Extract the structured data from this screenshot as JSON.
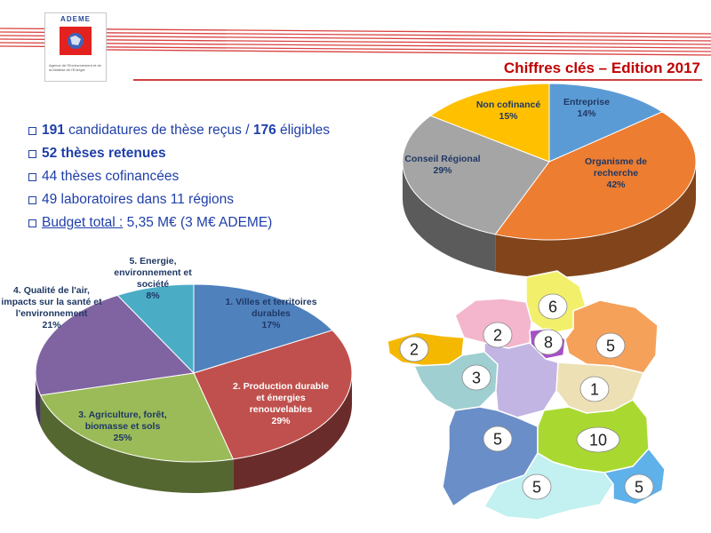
{
  "logo": {
    "brand": "ADEME",
    "tagline": "Agence de l'Environnement et de la Maîtrise de l'Energie"
  },
  "title": "Chiffres clés – Edition 2017",
  "bullets": [
    {
      "n1": "191",
      "t1": " candidatures de thèse reçus / ",
      "n2": "176",
      "t2": " éligibles"
    },
    {
      "text": "52 thèses retenues"
    },
    {
      "text": "44 thèses cofinancées"
    },
    {
      "text": "49 laboratoires dans 11 régions"
    },
    {
      "label": "Budget total :",
      "text": " 5,35 M€ (3 M€ ADEME)"
    }
  ],
  "colors": {
    "accent_red": "#c00000",
    "text_blue": "#1f3fa8"
  },
  "chart_data": [
    {
      "type": "pie",
      "title": "",
      "slices": [
        {
          "label": "Entreprise",
          "value": 14,
          "pct": "14%",
          "color": "#5b9bd5"
        },
        {
          "label": "Organisme de recherche",
          "value": 42,
          "pct": "42%",
          "color": "#ed7d31"
        },
        {
          "label": "Conseil Régional",
          "value": 29,
          "pct": "29%",
          "color": "#a5a5a5"
        },
        {
          "label": "Non cofinancé",
          "value": 15,
          "pct": "15%",
          "color": "#ffc000"
        }
      ]
    },
    {
      "type": "pie",
      "title": "",
      "slices": [
        {
          "label": "1. Villes et territoires durables",
          "value": 17,
          "pct": "17%",
          "color": "#4f81bd"
        },
        {
          "label": "2. Production durable et énergies renouvelables",
          "value": 29,
          "pct": "29%",
          "color": "#c0504d"
        },
        {
          "label": "3. Agriculture, forêt, biomasse et sols",
          "value": 25,
          "pct": "25%",
          "color": "#9bbb59"
        },
        {
          "label": "4. Qualité de l'air, impacts sur la santé et l'environnement",
          "value": 21,
          "pct": "21%",
          "color": "#8064a2"
        },
        {
          "label": "5. Energie, environnement et société",
          "value": 8,
          "pct": "8%",
          "color": "#4bacc6"
        }
      ]
    }
  ],
  "map": {
    "regions": [
      {
        "name": "hauts-de-france",
        "count": "6",
        "color": "#f2f06a"
      },
      {
        "name": "normandie",
        "count": "2",
        "color": "#f4b6cd"
      },
      {
        "name": "ile-de-france",
        "count": "8",
        "color": "#a64fc9"
      },
      {
        "name": "grand-est",
        "count": "5",
        "color": "#f5a15a"
      },
      {
        "name": "bretagne",
        "count": "2",
        "color": "#f5b800"
      },
      {
        "name": "pays-de-la-loire",
        "count": "3",
        "color": "#9fcfd0"
      },
      {
        "name": "centre-val-de-loire",
        "count": "",
        "color": "#c2b5e3"
      },
      {
        "name": "bourgogne-franche-comte",
        "count": "1",
        "color": "#ede0b5"
      },
      {
        "name": "nouvelle-aquitaine",
        "count": "5",
        "color": "#6a8ec7"
      },
      {
        "name": "auvergne-rhone-alpes",
        "count": "10",
        "color": "#a9d930"
      },
      {
        "name": "occitanie",
        "count": "5",
        "color": "#c3f0f0"
      },
      {
        "name": "paca",
        "count": "5",
        "color": "#5fb1ea"
      }
    ]
  }
}
